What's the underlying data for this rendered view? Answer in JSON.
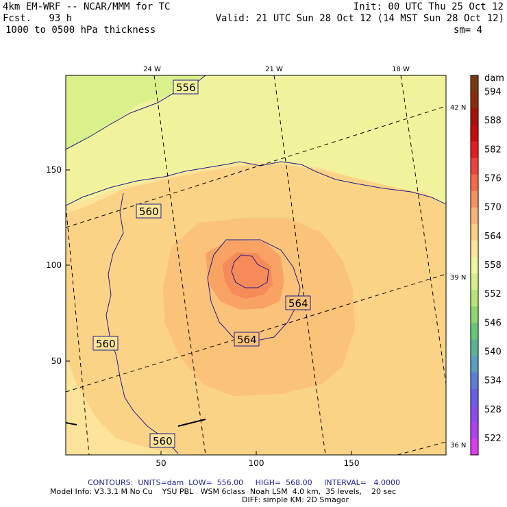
{
  "header": {
    "model_title": "4km EM-WRF -- NCAR/MMM for TC",
    "forecast_hour": "Fcst.   93 h",
    "field": "1000 to 0500 hPa thickness",
    "init_time": "Init: 00 UTC Thu 25 Oct 12",
    "valid_time": "Valid: 21 UTC Sun 28 Oct 12 (14 MST Sun 28 Oct 12)",
    "smoothing": "sm= 4"
  },
  "grid_axes": {
    "x_ticks": [
      "50",
      "100",
      "150"
    ],
    "y_ticks": [
      "50",
      "100",
      "150"
    ],
    "lon_labels": [
      "24 W",
      "21 W",
      "18 W"
    ],
    "lat_labels": [
      "42 N",
      "39 N",
      "36 N"
    ]
  },
  "contour_labels": [
    "556",
    "560",
    "560",
    "560",
    "564",
    "564"
  ],
  "colorbar": {
    "unit": "dam",
    "levels": [
      "594",
      "588",
      "582",
      "576",
      "570",
      "564",
      "558",
      "552",
      "546",
      "540",
      "534",
      "528",
      "522"
    ],
    "colors": [
      "#7a3a10",
      "#8f2a0c",
      "#a81008",
      "#c80a0a",
      "#e41c1c",
      "#f0403a",
      "#f66a48",
      "#f99060",
      "#fbb476",
      "#fdcf82",
      "#fde49a",
      "#f0f5a0",
      "#d8f08a",
      "#b8e676",
      "#8ed66e",
      "#66c67a",
      "#5ab496",
      "#5a9ec0",
      "#5a7ed8",
      "#6a5ee8",
      "#8a4cf0",
      "#b040f0",
      "#de3cef"
    ]
  },
  "footer": {
    "contours": "CONTOURS:  UNITS=dam  LOW=  556.00     HIGH=  568.00     INTERVAL=   4.0000",
    "model_info": "Model Info: V3.3.1 M No Cu    YSU PBL   WSM 6class  Noah LSM  4.0 km,  35 levels,    20 sec",
    "model_info2": "DIFF: simple KM: 2D Smagor"
  }
}
